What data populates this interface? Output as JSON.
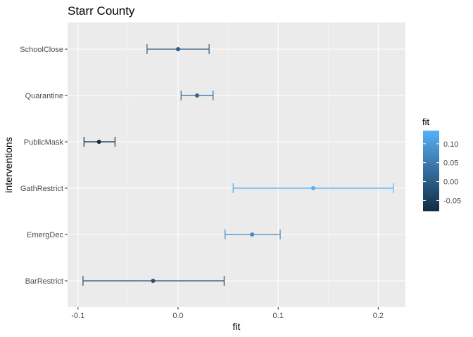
{
  "chart_data": {
    "type": "errorbar",
    "title": "Starr County",
    "xlabel": "fit",
    "ylabel": "interventions",
    "xlim": [
      -0.1,
      0.2
    ],
    "x_ticks": [
      "-0.1",
      "0.0",
      "0.1",
      "0.2"
    ],
    "x_tick_values": [
      -0.1,
      0.0,
      0.1,
      0.2
    ],
    "categories": [
      "SchoolClose",
      "Quarantine",
      "PublicMask",
      "GathRestrict",
      "EmergDec",
      "BarRestrict"
    ],
    "fit": [
      0.0,
      0.019,
      -0.079,
      0.135,
      0.074,
      -0.025
    ],
    "lower": [
      -0.031,
      0.003,
      -0.094,
      0.055,
      0.047,
      -0.095
    ],
    "upper": [
      0.031,
      0.035,
      -0.063,
      0.215,
      0.102,
      0.046
    ],
    "legend": {
      "title": "fit",
      "labels": [
        "0.10",
        "0.05",
        "0.00",
        "-0.05"
      ],
      "values": [
        0.1,
        0.05,
        0.0,
        -0.05
      ],
      "placement": "right"
    },
    "color_scale": {
      "low": "#132B43",
      "high": "#56B1F7"
    },
    "panel_background": "#ebebeb",
    "grid": true
  }
}
